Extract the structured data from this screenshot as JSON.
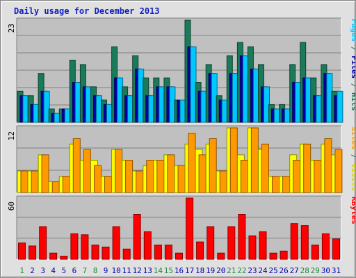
{
  "title": "Daily usage for December 2013",
  "colors": {
    "pages": "#00c8ff",
    "files": "#1a7a5a",
    "hits": "#1a7a5a",
    "visits": "#ffff00",
    "sites": "#ff9900",
    "kbytes": "#ff0000",
    "weekend_label": "#1a8a3a",
    "weekday_label": "#0000aa",
    "panel_bg": "#c0c0c0"
  },
  "chart_data": [
    {
      "type": "bar",
      "panel": "hits-files-pages",
      "ymax_label": "23",
      "ylim": [
        0,
        23
      ],
      "right_label_parts": [
        {
          "text": "Pages",
          "color": "#00c8ff"
        },
        {
          "text": " / ",
          "color": "#1a7a5a"
        },
        {
          "text": "Files",
          "color": "#0000aa"
        },
        {
          "text": " / ",
          "color": "#1a7a5a"
        },
        {
          "text": "Hits",
          "color": "#1a7a5a"
        }
      ],
      "categories": [
        "1",
        "2",
        "3",
        "4",
        "5",
        "6",
        "7",
        "8",
        "9",
        "10",
        "11",
        "12",
        "13",
        "14",
        "15",
        "16",
        "17",
        "18",
        "19",
        "20",
        "21",
        "22",
        "23",
        "24",
        "25",
        "26",
        "27",
        "28",
        "29",
        "30",
        "31"
      ],
      "series": [
        {
          "name": "Hits",
          "color": "#1a7a5a",
          "values": [
            7,
            6,
            11,
            3,
            3,
            14,
            13,
            8,
            5,
            17,
            8,
            15,
            10,
            10,
            10,
            5,
            23,
            9,
            13,
            6,
            15,
            18,
            17,
            13,
            4,
            4,
            13,
            18,
            10,
            13,
            7
          ]
        },
        {
          "name": "Files",
          "color": "#0000aa",
          "values": [
            6,
            4,
            7,
            2,
            3,
            9,
            8,
            6,
            4,
            10,
            6,
            12,
            6,
            8,
            8,
            5,
            17,
            7,
            11,
            5,
            11,
            15,
            12,
            8,
            3,
            3,
            9,
            10,
            6,
            11,
            6
          ]
        },
        {
          "name": "Pages",
          "color": "#00c8ff",
          "values": [
            6,
            4,
            7,
            2,
            3,
            9,
            8,
            6,
            4,
            10,
            6,
            12,
            6,
            8,
            8,
            5,
            17,
            7,
            11,
            5,
            11,
            15,
            12,
            8,
            3,
            3,
            9,
            10,
            6,
            11,
            7
          ]
        }
      ]
    },
    {
      "type": "bar",
      "panel": "visits-sites",
      "ymax_label": "12",
      "ylim": [
        0,
        12
      ],
      "right_label_parts": [
        {
          "text": "Sites",
          "color": "#ff9900"
        },
        {
          "text": " / ",
          "color": "#1a7a5a"
        },
        {
          "text": "Visits",
          "color": "#d8d800"
        }
      ],
      "categories": [
        "1",
        "2",
        "3",
        "4",
        "5",
        "6",
        "7",
        "8",
        "9",
        "10",
        "11",
        "12",
        "13",
        "14",
        "15",
        "16",
        "17",
        "18",
        "19",
        "20",
        "21",
        "22",
        "23",
        "24",
        "25",
        "26",
        "27",
        "28",
        "29",
        "30",
        "31"
      ],
      "series": [
        {
          "name": "Visits",
          "color": "#ffff00",
          "values": [
            4,
            4,
            7,
            2,
            3,
            9,
            6,
            6,
            3,
            8,
            6,
            4,
            5,
            6,
            7,
            5,
            9,
            8,
            9,
            4,
            12,
            7,
            12,
            8,
            3,
            3,
            7,
            9,
            6,
            9,
            7
          ]
        },
        {
          "name": "Sites",
          "color": "#ff9900",
          "values": [
            4,
            4,
            7,
            2,
            3,
            10,
            8,
            5,
            3,
            8,
            6,
            4,
            6,
            6,
            7,
            5,
            11,
            7,
            10,
            4,
            12,
            6,
            12,
            9,
            3,
            3,
            6,
            9,
            6,
            10,
            8
          ]
        }
      ]
    },
    {
      "type": "bar",
      "panel": "kbytes",
      "ymax_label": "60",
      "ylim": [
        0,
        60
      ],
      "right_label_parts": [
        {
          "text": "KBytes",
          "color": "#ff0000"
        }
      ],
      "categories": [
        "1",
        "2",
        "3",
        "4",
        "5",
        "6",
        "7",
        "8",
        "9",
        "10",
        "11",
        "12",
        "13",
        "14",
        "15",
        "16",
        "17",
        "18",
        "19",
        "20",
        "21",
        "22",
        "23",
        "24",
        "25",
        "26",
        "27",
        "28",
        "29",
        "30",
        "31"
      ],
      "series": [
        {
          "name": "KBytes",
          "color": "#ff0000",
          "values": [
            16,
            13,
            32,
            6,
            3,
            25,
            24,
            14,
            12,
            32,
            10,
            44,
            27,
            14,
            14,
            6,
            60,
            17,
            32,
            6,
            32,
            44,
            23,
            27,
            6,
            8,
            35,
            33,
            14,
            25,
            20
          ]
        }
      ]
    }
  ],
  "x_labels": [
    {
      "day": "1",
      "weekend": true
    },
    {
      "day": "2",
      "weekend": false
    },
    {
      "day": "3",
      "weekend": false
    },
    {
      "day": "4",
      "weekend": false
    },
    {
      "day": "5",
      "weekend": false
    },
    {
      "day": "6",
      "weekend": false
    },
    {
      "day": "7",
      "weekend": true
    },
    {
      "day": "8",
      "weekend": true
    },
    {
      "day": "9",
      "weekend": false
    },
    {
      "day": "10",
      "weekend": false
    },
    {
      "day": "11",
      "weekend": false
    },
    {
      "day": "12",
      "weekend": false
    },
    {
      "day": "13",
      "weekend": false
    },
    {
      "day": "14",
      "weekend": true
    },
    {
      "day": "15",
      "weekend": true
    },
    {
      "day": "16",
      "weekend": false
    },
    {
      "day": "17",
      "weekend": false
    },
    {
      "day": "18",
      "weekend": false
    },
    {
      "day": "19",
      "weekend": false
    },
    {
      "day": "20",
      "weekend": false
    },
    {
      "day": "21",
      "weekend": true
    },
    {
      "day": "22",
      "weekend": true
    },
    {
      "day": "23",
      "weekend": false
    },
    {
      "day": "24",
      "weekend": false
    },
    {
      "day": "25",
      "weekend": false
    },
    {
      "day": "26",
      "weekend": false
    },
    {
      "day": "27",
      "weekend": false
    },
    {
      "day": "28",
      "weekend": true
    },
    {
      "day": "29",
      "weekend": true
    },
    {
      "day": "30",
      "weekend": false
    },
    {
      "day": "31",
      "weekend": false
    }
  ]
}
